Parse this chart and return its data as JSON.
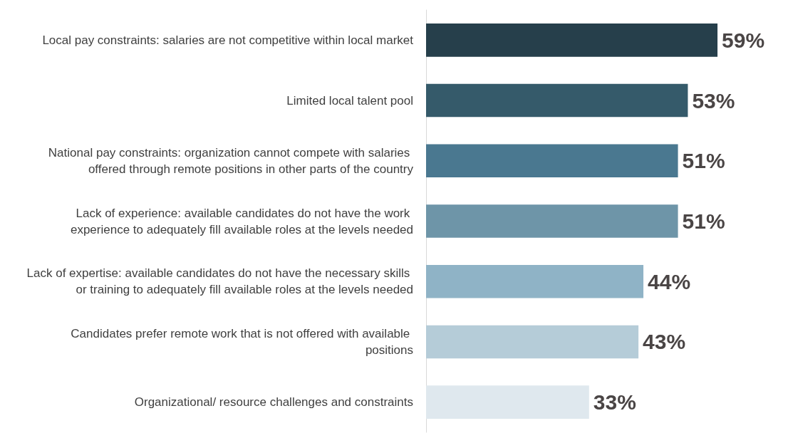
{
  "chart_data": {
    "type": "bar",
    "orientation": "horizontal",
    "categories": [
      "Local pay constraints: salaries are not competitive within local market",
      "Limited local talent pool",
      "National pay constraints: organization cannot compete with salaries offered through remote positions in other parts of the country",
      "Lack of experience: available candidates do not have the work experience to adequately fill available roles at the levels needed",
      "Lack of expertise: available candidates do not have the necessary skills or training to adequately fill available roles at the levels needed",
      "Candidates prefer remote work that is not offered with available positions",
      "Organizational/ resource challenges and constraints"
    ],
    "values": [
      59,
      53,
      51,
      51,
      44,
      43,
      33
    ],
    "value_labels": [
      "59%",
      "53%",
      "51%",
      "51%",
      "44%",
      "43%",
      "33%"
    ],
    "colors": [
      "#263f4b",
      "#355a6a",
      "#4a7890",
      "#6e95a8",
      "#8fb3c6",
      "#b5ccd8",
      "#dfe8ee"
    ]
  }
}
